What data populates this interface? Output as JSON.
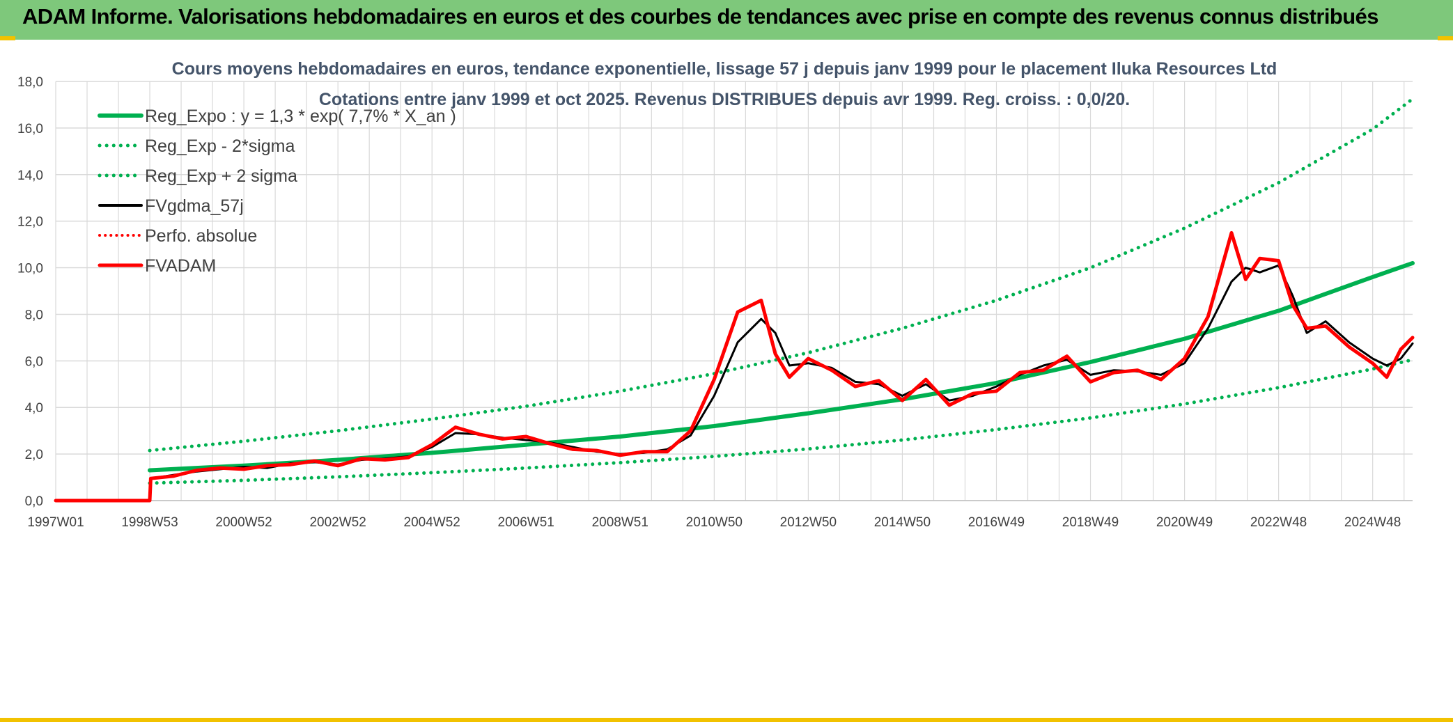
{
  "header": {
    "title": "ADAM Informe. Valorisations hebdomadaires en euros et des courbes de tendances avec prise en compte des revenus connus distribués"
  },
  "colors": {
    "header_bg": "#7ec87b",
    "accent_yellow": "#f2c200",
    "trend_green": "#00b050",
    "fvadam_red": "#ff0000",
    "fvgdma_black": "#000000",
    "grid": "#d9d9d9"
  },
  "chart_data": {
    "type": "line",
    "title": "Cours moyens hebdomadaires en euros, tendance exponentielle, lissage 57 j depuis janv 1999 pour le placement Iluka Resources Ltd",
    "subtitle": "Cotations entre janv 1999 et oct 2025. Revenus DISTRIBUES depuis avr 1999. Reg. croiss. : 0,0/20.",
    "xlabel": "",
    "ylabel": "",
    "ylim": [
      0,
      18
    ],
    "xlim": [
      1997.0,
      2025.85
    ],
    "yticks": [
      "0,0",
      "2,0",
      "4,0",
      "6,0",
      "8,0",
      "10,0",
      "12,0",
      "14,0",
      "16,0",
      "18,0"
    ],
    "xticks": [
      {
        "label": "1997W01",
        "x": 1997.0
      },
      {
        "label": "1998W53",
        "x": 1999.0
      },
      {
        "label": "2000W52",
        "x": 2001.0
      },
      {
        "label": "2002W52",
        "x": 2003.0
      },
      {
        "label": "2004W52",
        "x": 2005.0
      },
      {
        "label": "2006W51",
        "x": 2007.0
      },
      {
        "label": "2008W51",
        "x": 2009.0
      },
      {
        "label": "2010W50",
        "x": 2011.0
      },
      {
        "label": "2012W50",
        "x": 2013.0
      },
      {
        "label": "2014W50",
        "x": 2015.0
      },
      {
        "label": "2016W49",
        "x": 2017.0
      },
      {
        "label": "2018W49",
        "x": 2019.0
      },
      {
        "label": "2020W49",
        "x": 2021.0
      },
      {
        "label": "2022W48",
        "x": 2023.0
      },
      {
        "label": "2024W48",
        "x": 2025.0
      }
    ],
    "grid": true,
    "legend_position": "top-left",
    "legend": [
      {
        "key": "reg_expo",
        "label": "Reg_Expo : y = 1,3 * exp( 7,7% *  X_an )"
      },
      {
        "key": "reg_lo",
        "label": "Reg_Exp - 2*sigma"
      },
      {
        "key": "reg_hi",
        "label": "Reg_Exp + 2 sigma"
      },
      {
        "key": "fvgdma",
        "label": "FVgdma_57j"
      },
      {
        "key": "perfo",
        "label": "Perfo. absolue"
      },
      {
        "key": "fvadam",
        "label": "FVADAM"
      }
    ],
    "series": [
      {
        "name": "Reg_Expo : y = 1,3 * exp( 7,7% *  X_an )",
        "key": "reg_expo",
        "color": "#00b050",
        "style": "solid",
        "x": [
          1999.0,
          2001.0,
          2003.0,
          2005.0,
          2007.0,
          2009.0,
          2011.0,
          2013.0,
          2015.0,
          2017.0,
          2019.0,
          2021.0,
          2023.0,
          2025.0,
          2025.85
        ],
        "y": [
          1.3,
          1.5,
          1.75,
          2.05,
          2.4,
          2.75,
          3.2,
          3.75,
          4.35,
          5.05,
          5.95,
          6.95,
          8.15,
          9.6,
          10.2
        ]
      },
      {
        "name": "Reg_Exp - 2*sigma",
        "key": "reg_lo",
        "color": "#00b050",
        "style": "dotted",
        "x": [
          1999.0,
          2001.0,
          2003.0,
          2005.0,
          2007.0,
          2009.0,
          2011.0,
          2013.0,
          2015.0,
          2017.0,
          2019.0,
          2021.0,
          2023.0,
          2025.0,
          2025.85
        ],
        "y": [
          0.75,
          0.87,
          1.02,
          1.2,
          1.4,
          1.63,
          1.9,
          2.22,
          2.6,
          3.05,
          3.55,
          4.15,
          4.85,
          5.65,
          6.05
        ]
      },
      {
        "name": "Reg_Exp + 2 sigma",
        "key": "reg_hi",
        "color": "#00b050",
        "style": "dotted",
        "x": [
          1999.0,
          2001.0,
          2003.0,
          2005.0,
          2007.0,
          2009.0,
          2011.0,
          2013.0,
          2015.0,
          2017.0,
          2019.0,
          2021.0,
          2023.0,
          2025.0,
          2025.85
        ],
        "y": [
          2.15,
          2.55,
          3.0,
          3.5,
          4.05,
          4.7,
          5.45,
          6.35,
          7.4,
          8.6,
          10.0,
          11.7,
          13.65,
          15.95,
          17.25
        ]
      },
      {
        "name": "FVgdma_57j",
        "key": "fvgdma",
        "color": "#000000",
        "style": "solid",
        "x": [
          1997.0,
          1999.0,
          1999.02,
          1999.5,
          2000.0,
          2000.5,
          2001.0,
          2001.5,
          2002.0,
          2002.5,
          2003.0,
          2003.5,
          2004.0,
          2004.5,
          2005.0,
          2005.5,
          2006.0,
          2006.5,
          2007.0,
          2007.5,
          2008.0,
          2008.5,
          2009.0,
          2009.5,
          2010.0,
          2010.5,
          2011.0,
          2011.5,
          2012.0,
          2012.3,
          2012.6,
          2013.0,
          2013.5,
          2014.0,
          2014.5,
          2015.0,
          2015.5,
          2016.0,
          2016.5,
          2017.0,
          2017.5,
          2018.0,
          2018.5,
          2019.0,
          2019.5,
          2020.0,
          2020.5,
          2021.0,
          2021.5,
          2022.0,
          2022.3,
          2022.6,
          2023.0,
          2023.3,
          2023.6,
          2024.0,
          2024.5,
          2025.0,
          2025.3,
          2025.6,
          2025.85
        ],
        "y": [
          0.0,
          0.0,
          0.95,
          1.1,
          1.25,
          1.35,
          1.45,
          1.4,
          1.6,
          1.65,
          1.55,
          1.75,
          1.8,
          1.9,
          2.3,
          2.9,
          2.85,
          2.7,
          2.6,
          2.5,
          2.3,
          2.1,
          2.0,
          2.05,
          2.2,
          2.8,
          4.5,
          6.8,
          7.8,
          7.2,
          5.8,
          5.9,
          5.7,
          5.1,
          5.0,
          4.5,
          5.0,
          4.3,
          4.5,
          4.9,
          5.4,
          5.8,
          6.05,
          5.4,
          5.6,
          5.55,
          5.4,
          5.9,
          7.4,
          9.4,
          10.0,
          9.8,
          10.1,
          8.8,
          7.2,
          7.7,
          6.8,
          6.1,
          5.8,
          6.1,
          6.75
        ]
      },
      {
        "name": "FVADAM",
        "key": "fvadam",
        "color": "#ff0000",
        "style": "solid",
        "x": [
          1997.0,
          1999.0,
          1999.02,
          1999.5,
          2000.0,
          2000.5,
          2001.0,
          2001.5,
          2002.0,
          2002.5,
          2003.0,
          2003.5,
          2004.0,
          2004.5,
          2005.0,
          2005.5,
          2006.0,
          2006.5,
          2007.0,
          2007.5,
          2008.0,
          2008.5,
          2009.0,
          2009.5,
          2010.0,
          2010.5,
          2011.0,
          2011.5,
          2012.0,
          2012.3,
          2012.6,
          2013.0,
          2013.5,
          2014.0,
          2014.5,
          2015.0,
          2015.5,
          2016.0,
          2016.5,
          2017.0,
          2017.5,
          2018.0,
          2018.5,
          2019.0,
          2019.5,
          2020.0,
          2020.5,
          2021.0,
          2021.5,
          2022.0,
          2022.3,
          2022.6,
          2023.0,
          2023.3,
          2023.6,
          2024.0,
          2024.5,
          2025.0,
          2025.3,
          2025.6,
          2025.85
        ],
        "y": [
          0.0,
          0.0,
          0.95,
          1.05,
          1.3,
          1.4,
          1.35,
          1.5,
          1.55,
          1.7,
          1.5,
          1.8,
          1.75,
          1.85,
          2.4,
          3.15,
          2.85,
          2.65,
          2.75,
          2.45,
          2.2,
          2.15,
          1.95,
          2.1,
          2.1,
          3.0,
          5.2,
          8.1,
          8.6,
          6.3,
          5.3,
          6.1,
          5.6,
          4.9,
          5.15,
          4.3,
          5.2,
          4.1,
          4.6,
          4.7,
          5.5,
          5.6,
          6.2,
          5.1,
          5.5,
          5.6,
          5.2,
          6.1,
          7.9,
          11.5,
          9.5,
          10.4,
          10.3,
          8.4,
          7.4,
          7.5,
          6.6,
          5.9,
          5.3,
          6.5,
          7.0
        ]
      }
    ]
  }
}
